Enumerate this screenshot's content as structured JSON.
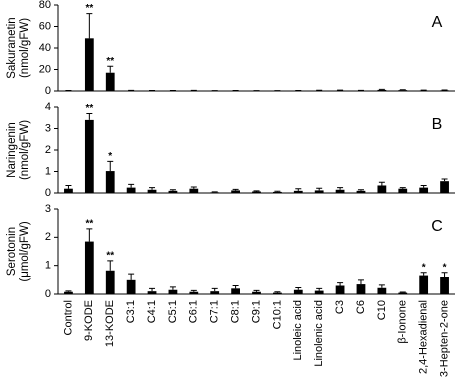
{
  "chart_data": [
    {
      "type": "bar",
      "label": "A",
      "ylabel": [
        "Sakuranetin",
        "(nmol/gFW)"
      ],
      "color": "#000000",
      "ylim": [
        0,
        80
      ],
      "yticks": [
        0,
        20,
        40,
        60,
        80
      ],
      "values": [
        0.3,
        49,
        17,
        0.4,
        0.3,
        0.3,
        0.4,
        0.2,
        0.3,
        0.2,
        0.2,
        0.3,
        0.4,
        0.5,
        0.4,
        1,
        0.8,
        0.5,
        0.6
      ],
      "errors": [
        0.2,
        23,
        6,
        0.2,
        0.2,
        0.2,
        0.2,
        0.1,
        0.2,
        0.1,
        0.1,
        0.2,
        0.3,
        0.3,
        0.2,
        0.5,
        0.4,
        0.3,
        0.3
      ],
      "annotations": [
        null,
        "**",
        "**",
        null,
        null,
        null,
        null,
        null,
        null,
        null,
        null,
        null,
        null,
        null,
        null,
        null,
        null,
        null,
        null
      ]
    },
    {
      "type": "bar",
      "label": "B",
      "ylabel": [
        "Naringenin",
        "(nmol/gFW)"
      ],
      "color": "#000000",
      "ylim": [
        0,
        4
      ],
      "yticks": [
        0,
        1,
        2,
        3,
        4
      ],
      "values": [
        0.2,
        3.4,
        1.02,
        0.25,
        0.15,
        0.1,
        0.2,
        0.03,
        0.12,
        0.07,
        0.05,
        0.1,
        0.12,
        0.15,
        0.1,
        0.35,
        0.2,
        0.25,
        0.55
      ],
      "errors": [
        0.15,
        0.3,
        0.45,
        0.15,
        0.1,
        0.05,
        0.08,
        0.02,
        0.05,
        0.03,
        0.03,
        0.1,
        0.1,
        0.1,
        0.05,
        0.15,
        0.05,
        0.1,
        0.1
      ],
      "annotations": [
        null,
        "**",
        "*",
        null,
        null,
        null,
        null,
        null,
        null,
        null,
        null,
        null,
        null,
        null,
        null,
        null,
        null,
        null,
        null
      ]
    },
    {
      "type": "bar",
      "label": "C",
      "ylabel": [
        "Serotonin",
        "(μmol/gFW)"
      ],
      "color": "#000000",
      "ylim": [
        0,
        3
      ],
      "yticks": [
        0,
        1,
        2,
        3
      ],
      "categories": [
        "Control",
        "9-KODE",
        "13-KODE",
        "C3:1",
        "C4:1",
        "C5:1",
        "C6:1",
        "C7:1",
        "C8:1",
        "C9:1",
        "C10:1",
        "Linoleic acid",
        "Linolenic acid",
        "C3",
        "C6",
        "C10",
        "β-Ionone",
        "2,4-Hexadienal",
        "3-Hepten-2-one"
      ],
      "values": [
        0.08,
        1.85,
        0.82,
        0.5,
        0.1,
        0.15,
        0.08,
        0.1,
        0.2,
        0.08,
        0.05,
        0.15,
        0.12,
        0.3,
        0.35,
        0.22,
        0.05,
        0.65,
        0.6
      ],
      "errors": [
        0.03,
        0.45,
        0.35,
        0.2,
        0.1,
        0.1,
        0.05,
        0.1,
        0.1,
        0.05,
        0.03,
        0.08,
        0.08,
        0.1,
        0.15,
        0.1,
        0.02,
        0.1,
        0.15
      ],
      "annotations": [
        null,
        "**",
        "**",
        null,
        null,
        null,
        null,
        null,
        null,
        null,
        null,
        null,
        null,
        null,
        null,
        null,
        null,
        "*",
        "*"
      ]
    }
  ]
}
